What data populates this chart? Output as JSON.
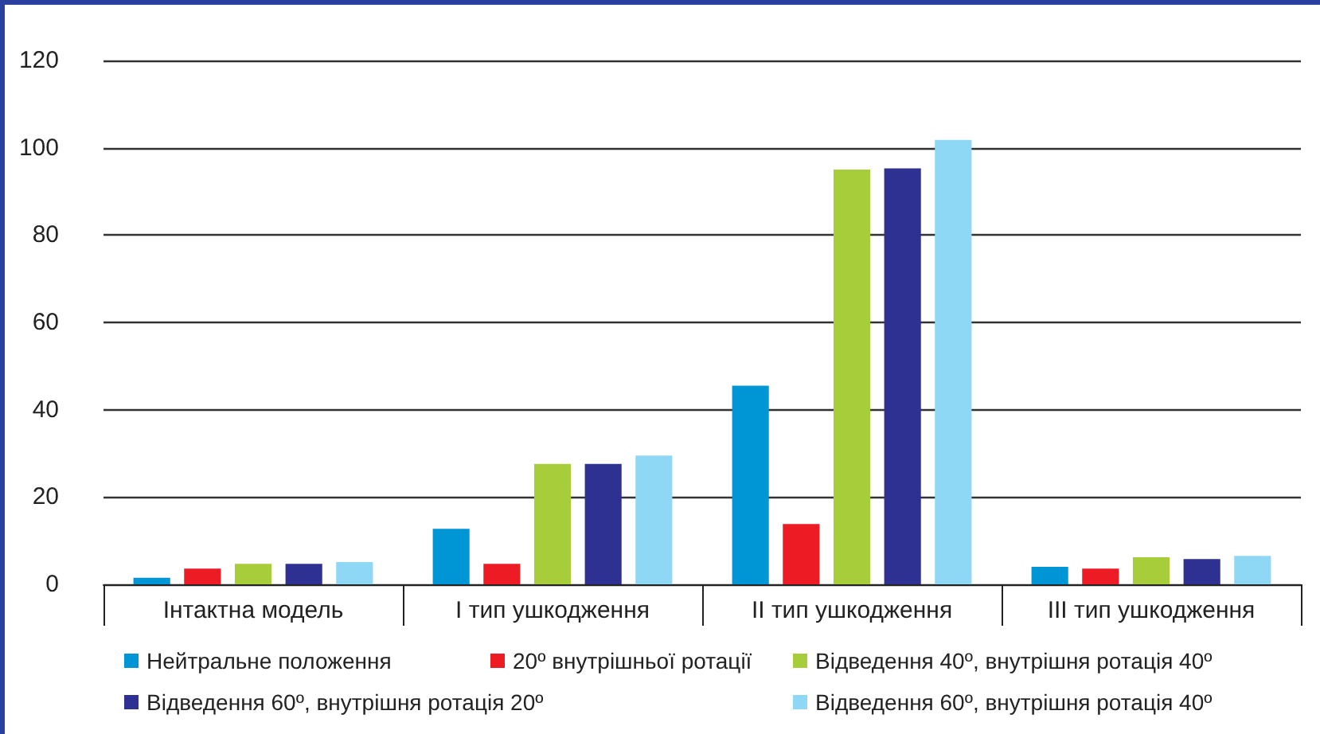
{
  "chart_data": {
    "type": "bar",
    "categories": [
      "Інтактна модель",
      "I тип ушкодження",
      "II тип ушкодження",
      "III тип ушкодження"
    ],
    "series": [
      {
        "name": "Нейтральне положення",
        "color": "#0096d6",
        "values": [
          1.5,
          12.7,
          45.5,
          4
        ]
      },
      {
        "name": "20º внутрішньої ротації",
        "color": "#ed1c24",
        "values": [
          3.6,
          4.7,
          13.8,
          3.6
        ]
      },
      {
        "name": "Відведення 40º, внутрішня ротація 40º",
        "color": "#a8cd3a",
        "values": [
          4.7,
          27.6,
          95,
          6.2
        ]
      },
      {
        "name": "Відведення 60º, внутрішня ротація 20º",
        "color": "#2e3192",
        "values": [
          4.7,
          27.6,
          95.3,
          5.8
        ]
      },
      {
        "name": "Відведення 60º, внутрішня ротація 40º",
        "color": "#8fd8f5",
        "values": [
          5.1,
          29.5,
          101.8,
          6.5
        ]
      }
    ],
    "ylim": [
      0,
      120
    ],
    "yticks": [
      0,
      20,
      40,
      60,
      80,
      100,
      120
    ],
    "grid": "y",
    "legend": "bottom"
  }
}
